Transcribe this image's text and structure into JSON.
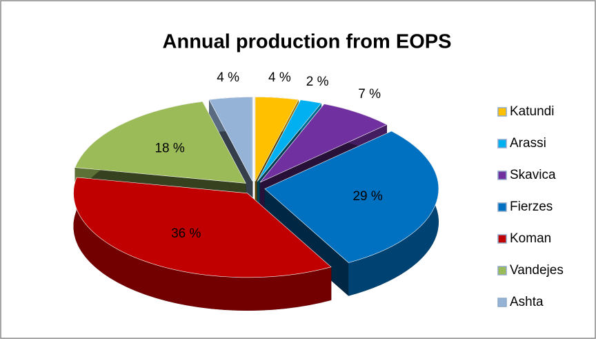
{
  "chart_data": {
    "type": "pie",
    "title": "Annual production from EOPS",
    "categories": [
      "Katundi",
      "Arassi",
      "Skavica",
      "Fierzes",
      "Koman",
      "Vandejes",
      "Ashta"
    ],
    "values": [
      4,
      2,
      7,
      29,
      36,
      18,
      4
    ],
    "value_labels": [
      "4 %",
      "2 %",
      "7 %",
      "29 %",
      "36 %",
      "18 %",
      "4 %"
    ],
    "colors": [
      "#FFC000",
      "#00B0F0",
      "#7030A0",
      "#0070C0",
      "#C00000",
      "#9BBB59",
      "#95B3D7"
    ],
    "legend": "right"
  }
}
